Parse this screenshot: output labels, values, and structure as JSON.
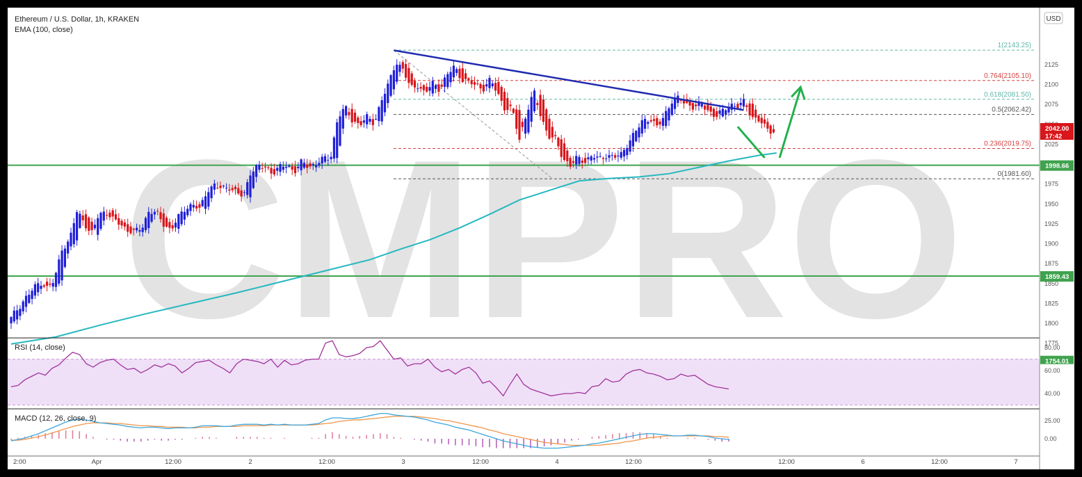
{
  "header": {
    "title": "Ethereum / U.S. Dollar, 1h, KRAKEN",
    "indicator": "EMA (100, close)"
  },
  "watermark": "CMPRO",
  "currency_badge": "USD",
  "price_badges": {
    "current_price": "2042.00",
    "countdown": "17:42",
    "support_upper": "1998.66",
    "support_lower": "1859.43",
    "bottom_cut": "1754.01"
  },
  "rsi_label": "RSI (14, close)",
  "macd_label": "MACD (12, 26, close, 9)",
  "colors": {
    "up": "#1f1fd8",
    "down": "#d8161b",
    "ema": "#26b8c0",
    "trendline": "#1f2bb0",
    "support": "#3fa34d",
    "arrow": "#22b14c",
    "rsi_line": "#a0339a",
    "rsi_band": "#efe0f7",
    "macd_line": "#3ba6dc",
    "signal_line": "#f0954a",
    "hist_pos": "#e07a94",
    "hist_neg": "#b25ab5"
  },
  "chart_data": [
    {
      "type": "candlestick",
      "title": "Ethereum / U.S. Dollar, 1h, KRAKEN",
      "ylim": [
        1754,
        2165
      ],
      "y_ticks": [
        1775,
        1800,
        1825,
        1850,
        1875,
        1900,
        1925,
        1950,
        1975,
        2000,
        2025,
        2050,
        2075,
        2100,
        2125
      ],
      "x_tick_labels": [
        "2:00",
        "Apr",
        "12:00",
        "2",
        "12:00",
        "3",
        "12:00",
        "4",
        "12:00",
        "5",
        "12:00",
        "6",
        "12:00",
        "7"
      ],
      "anchors_ohlc": [
        [
          1800,
          1808,
          1795,
          1806
        ],
        [
          1806,
          1822,
          1804,
          1820
        ],
        [
          1820,
          1836,
          1815,
          1832
        ],
        [
          1832,
          1845,
          1829,
          1842
        ],
        [
          1842,
          1856,
          1838,
          1853
        ],
        [
          1853,
          1854,
          1840,
          1844
        ],
        [
          1844,
          1858,
          1840,
          1854
        ],
        [
          1854,
          1900,
          1850,
          1895
        ],
        [
          1895,
          1905,
          1888,
          1902
        ],
        [
          1902,
          1945,
          1900,
          1940
        ],
        [
          1940,
          1948,
          1925,
          1930
        ],
        [
          1930,
          1935,
          1905,
          1910
        ],
        [
          1910,
          1940,
          1908,
          1935
        ],
        [
          1935,
          1948,
          1928,
          1942
        ],
        [
          1942,
          1944,
          1925,
          1930
        ],
        [
          1930,
          1935,
          1918,
          1925
        ],
        [
          1925,
          1930,
          1905,
          1918
        ],
        [
          1918,
          1925,
          1910,
          1914
        ],
        [
          1914,
          1925,
          1908,
          1920
        ],
        [
          1920,
          1946,
          1918,
          1942
        ],
        [
          1942,
          1968,
          1930,
          1938
        ],
        [
          1938,
          1942,
          1920,
          1925
        ],
        [
          1925,
          1930,
          1915,
          1918
        ],
        [
          1918,
          1935,
          1915,
          1932
        ],
        [
          1932,
          1948,
          1928,
          1945
        ],
        [
          1945,
          1956,
          1940,
          1950
        ],
        [
          1950,
          1952,
          1884,
          1942
        ],
        [
          1942,
          1972,
          1938,
          1968
        ],
        [
          1968,
          1980,
          1960,
          1974
        ],
        [
          1974,
          1976,
          1962,
          1968
        ],
        [
          1968,
          1978,
          1960,
          1972
        ],
        [
          1972,
          1975,
          1958,
          1965
        ],
        [
          1965,
          1970,
          1955,
          1958
        ],
        [
          1958,
          1995,
          1955,
          1992
        ],
        [
          1992,
          2004,
          1988,
          1997
        ],
        [
          1997,
          2002,
          1990,
          1995
        ],
        [
          1995,
          1998,
          1986,
          1990
        ],
        [
          1990,
          1998,
          1984,
          1996
        ],
        [
          1996,
          2008,
          1990,
          1998
        ],
        [
          1998,
          2002,
          1988,
          1992
        ],
        [
          1992,
          2004,
          1988,
          2002
        ],
        [
          2002,
          2010,
          1994,
          1996
        ],
        [
          1996,
          2004,
          1990,
          2002
        ],
        [
          2002,
          2008,
          1998,
          2006
        ],
        [
          2006,
          2012,
          2000,
          2008
        ],
        [
          2008,
          2065,
          2005,
          2060
        ],
        [
          2060,
          2082,
          2050,
          2070
        ],
        [
          2070,
          2075,
          2050,
          2055
        ],
        [
          2055,
          2062,
          2040,
          2050
        ],
        [
          2050,
          2062,
          2045,
          2058
        ],
        [
          2058,
          2068,
          2040,
          2052
        ],
        [
          2052,
          2085,
          2048,
          2080
        ],
        [
          2080,
          2104,
          2075,
          2100
        ],
        [
          2100,
          2135,
          2095,
          2130
        ],
        [
          2130,
          2143,
          2112,
          2118
        ],
        [
          2118,
          2120,
          2090,
          2095
        ],
        [
          2095,
          2105,
          2085,
          2100
        ],
        [
          2100,
          2102,
          2080,
          2088
        ],
        [
          2088,
          2108,
          2082,
          2102
        ],
        [
          2102,
          2108,
          2090,
          2095
        ],
        [
          2095,
          2110,
          2080,
          2110
        ],
        [
          2110,
          2130,
          2100,
          2123
        ],
        [
          2123,
          2125,
          2100,
          2108
        ],
        [
          2108,
          2120,
          2098,
          2102
        ],
        [
          2102,
          2108,
          2095,
          2100
        ],
        [
          2100,
          2105,
          2090,
          2095
        ],
        [
          2095,
          2108,
          2090,
          2105
        ],
        [
          2105,
          2108,
          2085,
          2090
        ],
        [
          2090,
          2095,
          2065,
          2070
        ],
        [
          2070,
          2075,
          2052,
          2068
        ],
        [
          2068,
          2072,
          2025,
          2032
        ],
        [
          2032,
          2068,
          2028,
          2065
        ],
        [
          2065,
          2095,
          2060,
          2090
        ],
        [
          2090,
          2098,
          2055,
          2060
        ],
        [
          2060,
          2065,
          2028,
          2035
        ],
        [
          2035,
          2040,
          2015,
          2030
        ],
        [
          2030,
          2035,
          2000,
          2008
        ],
        [
          2008,
          2012,
          1992,
          1998
        ],
        [
          1998,
          2012,
          1994,
          2008
        ],
        [
          2008,
          2015,
          1995,
          2004
        ],
        [
          2004,
          2014,
          2000,
          2010
        ],
        [
          2010,
          2016,
          2002,
          2006
        ],
        [
          2006,
          2014,
          2000,
          2012
        ],
        [
          2012,
          2018,
          2006,
          2008
        ],
        [
          2008,
          2020,
          2004,
          2012
        ],
        [
          2012,
          2030,
          2010,
          2028
        ],
        [
          2028,
          2042,
          2022,
          2040
        ],
        [
          2040,
          2060,
          2035,
          2055
        ],
        [
          2055,
          2060,
          2040,
          2058
        ],
        [
          2058,
          2062,
          2040,
          2045
        ],
        [
          2045,
          2065,
          2040,
          2062
        ],
        [
          2062,
          2085,
          2058,
          2080
        ],
        [
          2080,
          2086,
          2072,
          2082
        ],
        [
          2082,
          2086,
          2070,
          2076
        ],
        [
          2076,
          2082,
          2068,
          2072
        ],
        [
          2072,
          2080,
          2064,
          2075
        ],
        [
          2075,
          2078,
          2060,
          2068
        ],
        [
          2068,
          2072,
          2055,
          2060
        ],
        [
          2060,
          2068,
          2052,
          2066
        ],
        [
          2066,
          2080,
          2060,
          2076
        ],
        [
          2076,
          2080,
          2066,
          2072
        ],
        [
          2072,
          2078,
          2064,
          2078
        ],
        [
          2078,
          2080,
          2056,
          2060
        ],
        [
          2060,
          2062,
          2050,
          2055
        ],
        [
          2055,
          2058,
          2042,
          2044
        ],
        [
          2044,
          2046,
          2038,
          2042
        ]
      ],
      "ema_100": [
        [
          0,
          1774
        ],
        [
          15,
          1783
        ],
        [
          30,
          1798
        ],
        [
          45,
          1812
        ],
        [
          60,
          1825
        ],
        [
          75,
          1838
        ],
        [
          90,
          1852
        ],
        [
          105,
          1866
        ],
        [
          120,
          1880
        ],
        [
          130,
          1893
        ],
        [
          140,
          1905
        ],
        [
          150,
          1920
        ],
        [
          160,
          1937
        ],
        [
          170,
          1955
        ],
        [
          180,
          1967
        ],
        [
          190,
          1979
        ],
        [
          200,
          1982
        ],
        [
          210,
          1984
        ],
        [
          220,
          1988
        ],
        [
          230,
          1996
        ],
        [
          240,
          2004
        ],
        [
          250,
          2011
        ],
        [
          256,
          2014
        ]
      ],
      "trendline": {
        "from_price": 2143,
        "to_price": 2068
      },
      "fibonacci": [
        {
          "level": "1",
          "price": 2143.25,
          "label": "1(2143.25)"
        },
        {
          "level": "0.764",
          "price": 2105.1,
          "label": "0.764(2105.10)"
        },
        {
          "level": "0.618",
          "price": 2081.5,
          "label": "0.618(2081.50)"
        },
        {
          "level": "0.5",
          "price": 2062.42,
          "label": "0.5(2062.42)"
        },
        {
          "level": "0.236",
          "price": 2019.75,
          "label": "0.236(2019.75)"
        },
        {
          "level": "0",
          "price": 1981.6,
          "label": "0(1981.60)"
        }
      ],
      "horizontal_lines": [
        1998.66,
        1859.43,
        1754.01
      ],
      "current_price": 2042.0,
      "projection": {
        "dip_to": 2008,
        "target": 2095
      }
    },
    {
      "type": "line",
      "title": "RSI (14, close)",
      "ylim": [
        25,
        92
      ],
      "y_ticks": [
        40.0,
        60.0,
        80.0
      ],
      "band": [
        30,
        70
      ],
      "values": [
        46,
        47,
        52,
        55,
        58,
        56,
        62,
        65,
        71,
        76,
        74,
        66,
        63,
        67,
        69,
        70,
        65,
        61,
        62,
        58,
        61,
        65,
        63,
        66,
        64,
        58,
        62,
        67,
        68,
        69,
        65,
        62,
        58,
        66,
        70,
        69,
        68,
        66,
        70,
        63,
        69,
        65,
        66,
        69,
        70,
        70,
        84,
        86,
        74,
        72,
        73,
        75,
        80,
        81,
        86,
        78,
        70,
        71,
        64,
        66,
        66,
        70,
        63,
        59,
        61,
        57,
        61,
        63,
        58,
        49,
        51,
        45,
        38,
        48,
        57,
        48,
        44,
        42,
        40,
        38,
        39,
        40,
        40,
        41,
        40,
        46,
        47,
        53,
        50,
        51,
        57,
        60,
        61,
        58,
        57,
        55,
        52,
        53,
        57,
        55,
        56,
        52,
        48,
        46,
        45,
        44
      ]
    },
    {
      "type": "macd",
      "title": "MACD (12, 26, close, 9)",
      "ylim": [
        -16,
        38
      ],
      "y_ticks": [
        0.0,
        25.0
      ],
      "macd": [
        -3,
        -1,
        1,
        4,
        7,
        11,
        15,
        19,
        23,
        26,
        27,
        26,
        24,
        22,
        21,
        20,
        19,
        17,
        16,
        15,
        16,
        16,
        15,
        14,
        15,
        15,
        15,
        16,
        18,
        18,
        18,
        17,
        17,
        19,
        20,
        20,
        20,
        19,
        20,
        19,
        20,
        19,
        19,
        19,
        20,
        21,
        26,
        29,
        29,
        28,
        28,
        29,
        31,
        33,
        35,
        35,
        33,
        32,
        31,
        30,
        28,
        26,
        23,
        21,
        19,
        16,
        14,
        12,
        9,
        6,
        3,
        0,
        -3,
        -5,
        -7,
        -9,
        -11,
        -12,
        -13,
        -13,
        -13,
        -12,
        -11,
        -10,
        -9,
        -7,
        -6,
        -4,
        -2,
        0,
        2,
        4,
        6,
        7,
        7,
        6,
        5,
        4,
        4,
        5,
        5,
        4,
        3,
        1,
        0,
        -1
      ],
      "signal": [
        -2,
        -2,
        -1,
        1,
        3,
        5,
        8,
        11,
        14,
        17,
        19,
        21,
        22,
        22,
        22,
        21,
        21,
        20,
        19,
        18,
        18,
        17,
        17,
        16,
        16,
        16,
        15,
        15,
        16,
        16,
        17,
        17,
        17,
        17,
        18,
        18,
        18,
        18,
        19,
        19,
        19,
        19,
        19,
        19,
        19,
        20,
        21,
        22,
        24,
        25,
        26,
        26,
        27,
        28,
        29,
        30,
        31,
        31,
        31,
        31,
        30,
        29,
        28,
        26,
        25,
        23,
        21,
        19,
        17,
        15,
        12,
        10,
        7,
        5,
        3,
        1,
        -1,
        -3,
        -5,
        -6,
        -7,
        -8,
        -9,
        -9,
        -9,
        -9,
        -9,
        -8,
        -7,
        -6,
        -4,
        -3,
        -1,
        1,
        2,
        3,
        4,
        4,
        4,
        4,
        4,
        4,
        4,
        3,
        3,
        2
      ]
    }
  ]
}
